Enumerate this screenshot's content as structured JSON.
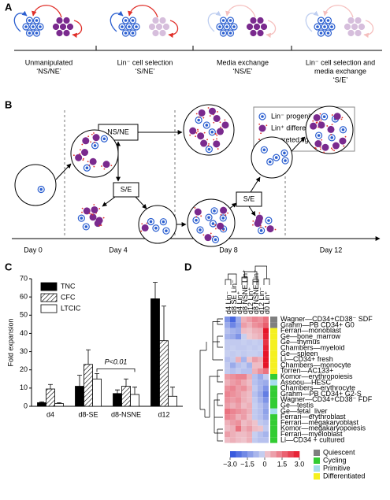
{
  "panel_a": {
    "label": "A",
    "captions": [
      [
        "Unmanipulated",
        "‘NS/NE’"
      ],
      [
        "Lin⁻ cell selection",
        "‘S/NE’"
      ],
      [
        "Media exchange",
        "‘NS/E’"
      ],
      [
        "Lin⁻ cell selection and",
        "media exchange",
        "‘S/E’"
      ]
    ]
  },
  "panel_b": {
    "label": "B",
    "boxes": [
      "NS/NE",
      "S/E",
      "S/E"
    ],
    "legend": [
      "Lin⁻ progenitor",
      "Lin⁺ differentiated cell",
      "Secreted ligands"
    ],
    "days": [
      "Day 0",
      "Day 4",
      "Day 8",
      "Day 12"
    ]
  },
  "chart_data": {
    "type": "bar",
    "label": "C",
    "y_label": "Fold expansion",
    "categories": [
      "d4",
      "d8-SE",
      "d8-NSNE",
      "d12"
    ],
    "series": [
      {
        "name": "TNC",
        "color": "#000000",
        "pattern": "solid",
        "values": [
          2,
          11,
          7,
          59
        ],
        "errors": [
          0.5,
          6,
          2,
          9
        ]
      },
      {
        "name": "CFC",
        "color": "#ffffff",
        "pattern": "hatch",
        "values": [
          9.5,
          23,
          11,
          36
        ],
        "errors": [
          2.5,
          8,
          4,
          19
        ]
      },
      {
        "name": "LTCIC",
        "color": "#ffffff",
        "pattern": "solid",
        "values": [
          1.5,
          15,
          6.5,
          5.5
        ],
        "errors": [
          0.5,
          3,
          4,
          5
        ]
      }
    ],
    "annotation": "P<0.01",
    "ylim": [
      0,
      70
    ],
    "yticks": [
      0,
      10,
      20,
      30,
      40,
      50,
      60,
      70
    ]
  },
  "panel_d": {
    "label": "D",
    "columns": [
      "d4 Lin⁻",
      "d8 SE Lin⁻",
      "d4 Lin⁺",
      "d8 NSNE Lin⁺",
      "d12 Lin⁺",
      "d8 NSNE Lin⁻",
      "d12 Lin⁻",
      "d0 Lin⁺"
    ],
    "rows": [
      "Wagner—CD34+CD38⁻ SDF",
      "Grahm—PB CD34+ G0",
      "Ferrari—monoblast",
      "Ge—bone_marrow",
      "Ge—thymus",
      "Chambers—myeloid",
      "Ge—spleen",
      "Li—CD34+ fresh",
      "Chambers—monocyte",
      "Torren—AC133+",
      "Komor—erythropoiesis",
      "Assoou—HESC",
      "Chambers—erythrocyte",
      "Grahm—PB CD34+ G2-S",
      "Wagner—CD34+CD38⁻ FDF",
      "Ge—testis",
      "Ge—fetal_liver",
      "Ferrari—erythroblast",
      "Ferrari—megakaryoblast",
      "Komor—megakaryopoiesis",
      "Ferrari—myeloblast",
      "Li—CD34 + cultured"
    ],
    "values": [
      [
        -1.5,
        -2.5,
        -1,
        0.5,
        0.8,
        1.2,
        1,
        1.5
      ],
      [
        -1,
        -1.8,
        -1.2,
        0.8,
        0.5,
        1,
        1.2,
        1.8
      ],
      [
        -0.5,
        -0.8,
        -1,
        0.3,
        0.2,
        0.5,
        0.6,
        3
      ],
      [
        -0.8,
        -1,
        -1.5,
        -0.2,
        0.1,
        0.3,
        0.5,
        2.8
      ],
      [
        -0.3,
        -0.3,
        -0.3,
        -0.2,
        -0.3,
        -0.2,
        -0.3,
        2.5
      ],
      [
        -0.3,
        -0.2,
        -0.3,
        -0.3,
        -0.2,
        -0.3,
        -0.2,
        2.8
      ],
      [
        -0.2,
        -0.3,
        -0.2,
        -0.3,
        -0.2,
        -0.2,
        -0.3,
        3
      ],
      [
        -0.5,
        -0.3,
        0.5,
        -0.8,
        0.2,
        0.8,
        0.5,
        3
      ],
      [
        -0.3,
        -1,
        -0.5,
        -0.3,
        -0.8,
        0.3,
        0.3,
        3
      ],
      [
        -0.3,
        -0.5,
        -0.3,
        -0.5,
        -0.5,
        0.5,
        1,
        1.5
      ],
      [
        0.8,
        1,
        1.2,
        1.2,
        0.5,
        -0.5,
        -1,
        -0.3
      ],
      [
        0.5,
        0.8,
        1,
        0.6,
        0.3,
        -0.5,
        -0.8,
        -1
      ],
      [
        1,
        1.2,
        0.8,
        1,
        0.5,
        -0.3,
        -0.8,
        -1.5
      ],
      [
        1.2,
        1,
        0.8,
        0.5,
        0.3,
        -0.5,
        -1,
        -2
      ],
      [
        1,
        0.8,
        1,
        0.5,
        0.3,
        -0.3,
        -0.8,
        -1.5
      ],
      [
        0.8,
        0.5,
        0.8,
        0.3,
        0.5,
        -0.2,
        -0.5,
        -1
      ],
      [
        1.5,
        1.2,
        1,
        0.8,
        0.5,
        -0.3,
        -0.5,
        -1.2
      ],
      [
        1.2,
        1,
        0.5,
        0.8,
        0.3,
        -0.3,
        -0.5,
        -1
      ],
      [
        0.5,
        0.8,
        1,
        0.3,
        0.5,
        0.2,
        -0.3,
        -0.5
      ],
      [
        0.3,
        0.5,
        1.5,
        0.5,
        0.8,
        0.3,
        0.2,
        -0.3
      ],
      [
        0.8,
        0.5,
        0.3,
        0.3,
        0.5,
        -0.2,
        -0.5,
        -0.8
      ],
      [
        0.3,
        0.5,
        0.3,
        0.2,
        0.5,
        -0.3,
        -0.5,
        -0.5
      ]
    ],
    "row_classes": [
      0,
      0,
      3,
      3,
      3,
      3,
      3,
      3,
      3,
      3,
      1,
      2,
      1,
      1,
      1,
      1,
      2,
      1,
      1,
      1,
      1,
      1
    ],
    "classes": [
      {
        "name": "Quiescent",
        "color": "#7f7f7f"
      },
      {
        "name": "Cycling",
        "color": "#33cc33"
      },
      {
        "name": "Primitive",
        "color": "#a6dcec"
      },
      {
        "name": "Differentiated",
        "color": "#f5f020"
      }
    ],
    "colorbar_ticks": [
      {
        "value": -3,
        "label": "−3.0"
      },
      {
        "value": -1.5,
        "label": "−1.5"
      },
      0,
      1.5,
      {
        "value": 3,
        "label": "3.0"
      }
    ]
  }
}
